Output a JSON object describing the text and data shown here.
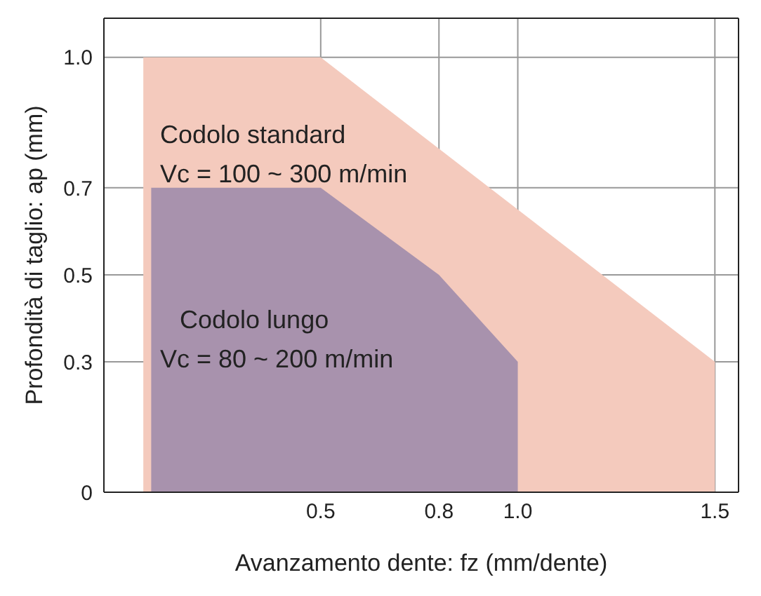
{
  "chart_data": {
    "type": "area",
    "xlabel": "Avanzamento dente: fz (mm/dente)",
    "ylabel": "Profondità di taglio: ap (mm)",
    "xlim": [
      -0.05,
      1.56
    ],
    "ylim": [
      0,
      1.09
    ],
    "xticks": [
      0.5,
      0.8,
      {
        "value": 1,
        "label": "1.0"
      },
      1.5
    ],
    "yticks": [
      0,
      0.3,
      0.5,
      0.7,
      {
        "value": 1,
        "label": "1.0"
      }
    ],
    "grid": true,
    "series": [
      {
        "color": "#f4cabd",
        "x": [
          0.05,
          0.5,
          1.5
        ],
        "values": [
          1,
          1,
          0.3
        ]
      },
      {
        "color": "#a892ad",
        "x": [
          0.07,
          0.5,
          0.8,
          1.0
        ],
        "values": [
          0.7,
          0.7,
          0.5,
          0.3
        ]
      }
    ],
    "annotations": [
      "Codolo standard",
      "Vc = 100 ~ 300 m/min",
      "Codolo lungo",
      "Vc = 80 ~ 200 m/min"
    ]
  }
}
